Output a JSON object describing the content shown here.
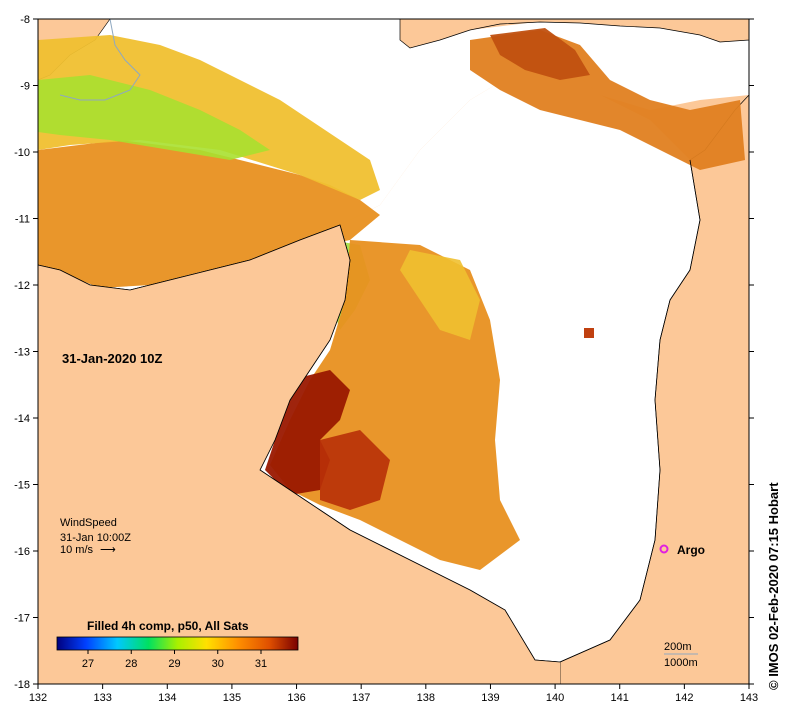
{
  "map": {
    "timestamp_label": "31-Jan-2020 10Z",
    "credit": "© IMOS 02-Feb-2020 07:15 Hobart",
    "x_ticks": [
      "132",
      "133",
      "134",
      "135",
      "136",
      "137",
      "138",
      "139",
      "140",
      "141",
      "142",
      "143"
    ],
    "y_ticks": [
      "-8",
      "-9",
      "-10",
      "-11",
      "-12",
      "-13",
      "-14",
      "-15",
      "-16",
      "-17",
      "-18"
    ],
    "wind": {
      "title": "WindSpeed",
      "time": "31-Jan 10:00Z",
      "scale_label": "10 m/s",
      "arrow_glyph": "⟶"
    },
    "argo": {
      "label": "Argo",
      "marker_color": "#e020e0"
    },
    "depth_contours": {
      "label_1": "200m",
      "label_2": "1000m"
    },
    "colorbar": {
      "title": "Filled 4h comp, p50, All Sats",
      "ticks": [
        "27",
        "28",
        "29",
        "30",
        "31"
      ],
      "colors": [
        "#00007f",
        "#0040ff",
        "#00c8ff",
        "#00e060",
        "#a8f000",
        "#ffe000",
        "#ff9000",
        "#e05000",
        "#7a0000"
      ]
    },
    "colors": {
      "land": "#fcc898",
      "no_data": "#ffffff",
      "sst_warm": "#e89020",
      "sst_hot": "#9a1800",
      "sst_mild": "#f0c030",
      "sst_cool": "#a0e030",
      "coast": "#000000",
      "river": "#8fa8c0"
    }
  }
}
